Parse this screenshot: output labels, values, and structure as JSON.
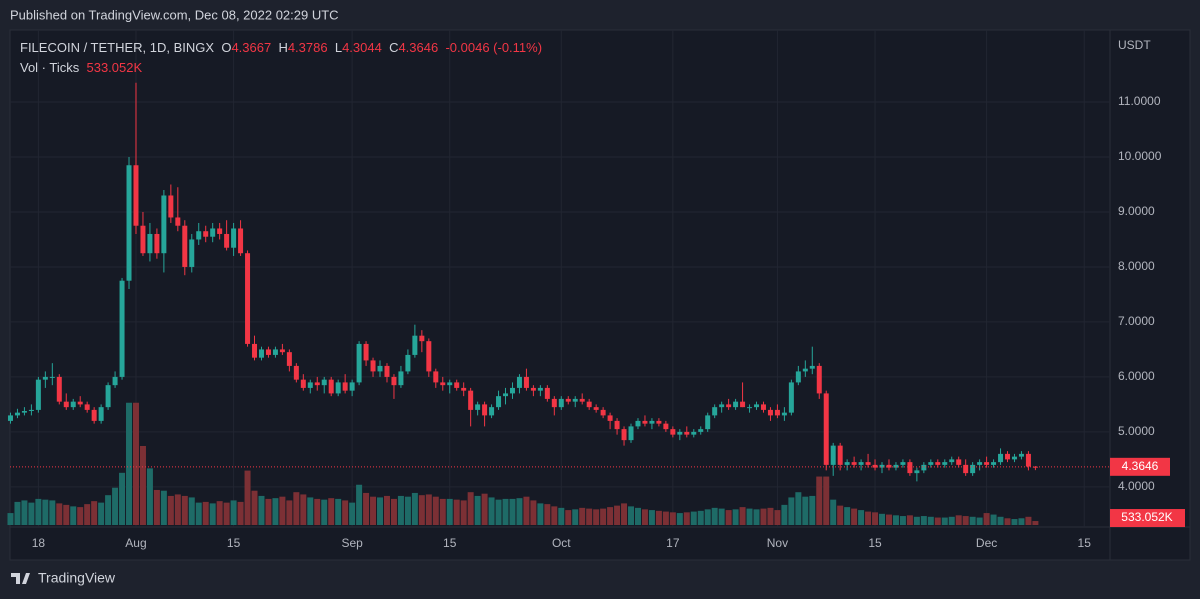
{
  "published": "Published on TradingView.com, Dec 08, 2022 02:29 UTC",
  "brand": "TradingView",
  "chart_data": {
    "type": "candlestick",
    "symbol": "FILECOIN / TETHER, 1D, BINGX",
    "ohlc_names": [
      "O",
      "H",
      "L",
      "C"
    ],
    "change": "-0.0046 (-0.11%)",
    "volume_title": "Vol · Ticks",
    "volume_label": "533.052K",
    "currency": "USDT",
    "up_color": "#26a69a",
    "down_color": "#f23645",
    "up_volume_color": "#1e6b67",
    "down_volume_color": "#7c3035",
    "grid": true,
    "ylim": [
      3.27,
      12.31
    ],
    "yticks": [
      {
        "value": 4,
        "label": "4.0000"
      },
      {
        "value": 5,
        "label": "5.0000"
      },
      {
        "value": 6,
        "label": "6.0000"
      },
      {
        "value": 7,
        "label": "7.0000"
      },
      {
        "value": 8,
        "label": "8.0000"
      },
      {
        "value": 9,
        "label": "9.0000"
      },
      {
        "value": 10,
        "label": "10.0000"
      },
      {
        "value": 11,
        "label": "11.0000"
      }
    ],
    "xlim": [
      -0.07,
      157.7
    ],
    "xticks": [
      {
        "value": 4,
        "label": "18"
      },
      {
        "value": 18,
        "label": "Aug"
      },
      {
        "value": 32,
        "label": "15"
      },
      {
        "value": 49,
        "label": "Sep"
      },
      {
        "value": 63,
        "label": "15"
      },
      {
        "value": 79,
        "label": "Oct"
      },
      {
        "value": 95,
        "label": "17"
      },
      {
        "value": 110,
        "label": "Nov"
      },
      {
        "value": 124,
        "label": "15"
      },
      {
        "value": 140,
        "label": "Dec"
      },
      {
        "value": 154,
        "label": "15"
      }
    ],
    "vlim": [
      0,
      16500
    ],
    "candles": [
      [
        5.2,
        5.35,
        5.15,
        5.3
      ],
      [
        5.3,
        5.42,
        5.25,
        5.35
      ],
      [
        5.35,
        5.45,
        5.3,
        5.38
      ],
      [
        5.38,
        5.5,
        5.3,
        5.4
      ],
      [
        5.4,
        6.0,
        5.35,
        5.95
      ],
      [
        5.95,
        6.1,
        5.8,
        6.0
      ],
      [
        6.0,
        6.25,
        5.85,
        6.0
      ],
      [
        6.0,
        6.05,
        5.5,
        5.55
      ],
      [
        5.55,
        5.7,
        5.4,
        5.45
      ],
      [
        5.45,
        5.6,
        5.4,
        5.55
      ],
      [
        5.55,
        5.65,
        5.45,
        5.5
      ],
      [
        5.5,
        5.55,
        5.35,
        5.4
      ],
      [
        5.4,
        5.45,
        5.15,
        5.2
      ],
      [
        5.2,
        5.5,
        5.15,
        5.45
      ],
      [
        5.45,
        5.9,
        5.4,
        5.85
      ],
      [
        5.85,
        6.1,
        5.8,
        6.0
      ],
      [
        6.0,
        7.8,
        5.95,
        7.75
      ],
      [
        7.75,
        10.0,
        7.6,
        9.85
      ],
      [
        9.85,
        11.35,
        8.6,
        8.75
      ],
      [
        8.75,
        9.0,
        8.2,
        8.25
      ],
      [
        8.25,
        8.8,
        8.1,
        8.6
      ],
      [
        8.6,
        8.7,
        8.15,
        8.25
      ],
      [
        8.25,
        9.4,
        7.9,
        9.3
      ],
      [
        9.3,
        9.5,
        8.8,
        8.9
      ],
      [
        8.9,
        9.45,
        8.65,
        8.75
      ],
      [
        8.75,
        8.85,
        7.85,
        8.0
      ],
      [
        8.0,
        8.6,
        7.9,
        8.5
      ],
      [
        8.5,
        8.8,
        8.4,
        8.65
      ],
      [
        8.65,
        8.75,
        8.45,
        8.55
      ],
      [
        8.55,
        8.8,
        8.45,
        8.7
      ],
      [
        8.7,
        8.8,
        8.5,
        8.6
      ],
      [
        8.6,
        8.85,
        8.3,
        8.35
      ],
      [
        8.35,
        8.8,
        8.2,
        8.7
      ],
      [
        8.7,
        8.85,
        8.2,
        8.25
      ],
      [
        8.25,
        8.3,
        6.55,
        6.6
      ],
      [
        6.6,
        6.75,
        6.3,
        6.35
      ],
      [
        6.35,
        6.55,
        6.3,
        6.5
      ],
      [
        6.5,
        6.55,
        6.35,
        6.4
      ],
      [
        6.4,
        6.55,
        6.35,
        6.5
      ],
      [
        6.5,
        6.6,
        6.4,
        6.45
      ],
      [
        6.45,
        6.5,
        6.1,
        6.2
      ],
      [
        6.2,
        6.25,
        5.9,
        5.95
      ],
      [
        5.95,
        6.05,
        5.75,
        5.8
      ],
      [
        5.8,
        5.95,
        5.7,
        5.9
      ],
      [
        5.9,
        6.0,
        5.75,
        5.85
      ],
      [
        5.85,
        6.0,
        5.7,
        5.95
      ],
      [
        5.95,
        6.0,
        5.65,
        5.7
      ],
      [
        5.7,
        5.95,
        5.65,
        5.9
      ],
      [
        5.9,
        6.05,
        5.7,
        5.75
      ],
      [
        5.75,
        5.95,
        5.65,
        5.9
      ],
      [
        5.9,
        6.65,
        5.85,
        6.6
      ],
      [
        6.6,
        6.65,
        6.2,
        6.3
      ],
      [
        6.3,
        6.35,
        6.0,
        6.1
      ],
      [
        6.1,
        6.3,
        6.0,
        6.2
      ],
      [
        6.2,
        6.25,
        5.9,
        6.0
      ],
      [
        6.0,
        6.05,
        5.6,
        5.85
      ],
      [
        5.85,
        6.2,
        5.8,
        6.1
      ],
      [
        6.1,
        6.5,
        6.05,
        6.4
      ],
      [
        6.4,
        6.95,
        6.35,
        6.75
      ],
      [
        6.75,
        6.85,
        6.45,
        6.65
      ],
      [
        6.65,
        6.7,
        6.0,
        6.1
      ],
      [
        6.1,
        6.15,
        5.8,
        5.9
      ],
      [
        5.9,
        6.0,
        5.75,
        5.85
      ],
      [
        5.85,
        5.95,
        5.7,
        5.9
      ],
      [
        5.9,
        5.95,
        5.75,
        5.8
      ],
      [
        5.8,
        5.9,
        5.65,
        5.75
      ],
      [
        5.75,
        5.8,
        5.1,
        5.4
      ],
      [
        5.4,
        5.55,
        5.3,
        5.5
      ],
      [
        5.5,
        5.55,
        5.1,
        5.3
      ],
      [
        5.3,
        5.5,
        5.25,
        5.45
      ],
      [
        5.45,
        5.75,
        5.4,
        5.65
      ],
      [
        5.65,
        5.8,
        5.5,
        5.7
      ],
      [
        5.7,
        5.9,
        5.6,
        5.8
      ],
      [
        5.8,
        6.05,
        5.7,
        6.0
      ],
      [
        6.0,
        6.15,
        5.75,
        5.8
      ],
      [
        5.8,
        5.85,
        5.65,
        5.75
      ],
      [
        5.75,
        5.85,
        5.65,
        5.8
      ],
      [
        5.8,
        5.85,
        5.55,
        5.6
      ],
      [
        5.6,
        5.65,
        5.3,
        5.45
      ],
      [
        5.45,
        5.65,
        5.4,
        5.6
      ],
      [
        5.6,
        5.65,
        5.5,
        5.55
      ],
      [
        5.55,
        5.65,
        5.45,
        5.6
      ],
      [
        5.6,
        5.7,
        5.5,
        5.55
      ],
      [
        5.55,
        5.6,
        5.4,
        5.45
      ],
      [
        5.45,
        5.5,
        5.35,
        5.4
      ],
      [
        5.4,
        5.45,
        5.25,
        5.3
      ],
      [
        5.3,
        5.35,
        5.05,
        5.2
      ],
      [
        5.2,
        5.25,
        4.95,
        5.05
      ],
      [
        5.05,
        5.1,
        4.75,
        4.85
      ],
      [
        4.85,
        5.15,
        4.8,
        5.1
      ],
      [
        5.1,
        5.25,
        5.05,
        5.2
      ],
      [
        5.2,
        5.3,
        5.1,
        5.15
      ],
      [
        5.15,
        5.25,
        5.05,
        5.2
      ],
      [
        5.2,
        5.25,
        5.1,
        5.15
      ],
      [
        5.15,
        5.2,
        5.0,
        5.05
      ],
      [
        5.05,
        5.1,
        4.9,
        4.95
      ],
      [
        4.95,
        5.05,
        4.85,
        5.0
      ],
      [
        5.0,
        5.1,
        4.9,
        4.95
      ],
      [
        4.95,
        5.05,
        4.9,
        5.0
      ],
      [
        5.0,
        5.1,
        4.95,
        5.05
      ],
      [
        5.05,
        5.35,
        5.0,
        5.3
      ],
      [
        5.3,
        5.5,
        5.25,
        5.45
      ],
      [
        5.45,
        5.55,
        5.35,
        5.5
      ],
      [
        5.5,
        5.6,
        5.4,
        5.45
      ],
      [
        5.45,
        5.6,
        5.4,
        5.55
      ],
      [
        5.55,
        5.9,
        5.45,
        5.45
      ],
      [
        5.45,
        5.5,
        5.35,
        5.45
      ],
      [
        5.45,
        5.55,
        5.4,
        5.5
      ],
      [
        5.5,
        5.55,
        5.35,
        5.4
      ],
      [
        5.4,
        5.45,
        5.2,
        5.3
      ],
      [
        5.4,
        5.5,
        5.25,
        5.3
      ],
      [
        5.3,
        5.45,
        5.2,
        5.35
      ],
      [
        5.35,
        5.95,
        5.3,
        5.9
      ],
      [
        5.9,
        6.2,
        5.85,
        6.1
      ],
      [
        6.1,
        6.3,
        6.0,
        6.15
      ],
      [
        6.15,
        6.55,
        6.05,
        6.2
      ],
      [
        6.2,
        6.25,
        5.6,
        5.7
      ],
      [
        5.7,
        5.75,
        4.3,
        4.4
      ],
      [
        4.4,
        4.8,
        4.2,
        4.75
      ],
      [
        4.75,
        4.8,
        4.3,
        4.4
      ],
      [
        4.4,
        4.5,
        4.3,
        4.45
      ],
      [
        4.45,
        4.55,
        4.35,
        4.4
      ],
      [
        4.4,
        4.5,
        4.3,
        4.45
      ],
      [
        4.45,
        4.6,
        4.35,
        4.4
      ],
      [
        4.4,
        4.5,
        4.3,
        4.35
      ],
      [
        4.35,
        4.45,
        4.25,
        4.4
      ],
      [
        4.4,
        4.5,
        4.3,
        4.35
      ],
      [
        4.35,
        4.45,
        4.3,
        4.4
      ],
      [
        4.4,
        4.5,
        4.35,
        4.45
      ],
      [
        4.45,
        4.5,
        4.2,
        4.25
      ],
      [
        4.25,
        4.35,
        4.1,
        4.3
      ],
      [
        4.3,
        4.45,
        4.25,
        4.4
      ],
      [
        4.4,
        4.5,
        4.35,
        4.45
      ],
      [
        4.45,
        4.5,
        4.35,
        4.4
      ],
      [
        4.4,
        4.5,
        4.35,
        4.45
      ],
      [
        4.45,
        4.55,
        4.4,
        4.5
      ],
      [
        4.5,
        4.55,
        4.35,
        4.4
      ],
      [
        4.4,
        4.5,
        4.2,
        4.25
      ],
      [
        4.25,
        4.45,
        4.2,
        4.4
      ],
      [
        4.4,
        4.5,
        4.3,
        4.45
      ],
      [
        4.45,
        4.55,
        4.35,
        4.4
      ],
      [
        4.4,
        4.5,
        4.35,
        4.45
      ],
      [
        4.45,
        4.7,
        4.4,
        4.6
      ],
      [
        4.6,
        4.65,
        4.45,
        4.5
      ],
      [
        4.5,
        4.6,
        4.45,
        4.55
      ],
      [
        4.55,
        4.65,
        4.5,
        4.6
      ],
      [
        4.6,
        4.65,
        4.3,
        4.37
      ],
      [
        4.3667,
        4.3786,
        4.3044,
        4.3646
      ]
    ],
    "volumes": [
      1600,
      3100,
      3300,
      3000,
      3500,
      3400,
      3300,
      2900,
      2700,
      2500,
      2400,
      2800,
      3200,
      3000,
      4000,
      5000,
      7000,
      16400,
      16400,
      10600,
      7600,
      4700,
      4600,
      3900,
      4100,
      3900,
      3700,
      3000,
      3100,
      2900,
      3200,
      3000,
      3300,
      3100,
      7300,
      4600,
      3900,
      3500,
      3600,
      3800,
      3300,
      4400,
      4100,
      3700,
      3500,
      3400,
      3600,
      3500,
      3300,
      3000,
      5400,
      4300,
      3800,
      3700,
      3900,
      3500,
      3900,
      3800,
      4300,
      4000,
      4100,
      3800,
      3500,
      3500,
      3400,
      3300,
      4400,
      3900,
      4200,
      3700,
      3400,
      3500,
      3500,
      3600,
      3800,
      3300,
      2900,
      2800,
      2500,
      2300,
      2000,
      2100,
      2300,
      2200,
      2100,
      2200,
      2400,
      2600,
      2900,
      2500,
      2300,
      2100,
      2000,
      1900,
      1800,
      1700,
      1600,
      1700,
      1800,
      1900,
      2100,
      2300,
      2200,
      2000,
      2100,
      2400,
      2200,
      2100,
      2200,
      2300,
      2000,
      2700,
      3700,
      4400,
      3800,
      3900,
      6500,
      6500,
      3400,
      2600,
      2400,
      2200,
      2000,
      1800,
      1700,
      1500,
      1400,
      1300,
      1200,
      1300,
      1100,
      1200,
      1100,
      1000,
      1000,
      1100,
      1300,
      1200,
      1100,
      1000,
      1600,
      1400,
      1100,
      900,
      800,
      900,
      1100,
      533.052
    ]
  }
}
